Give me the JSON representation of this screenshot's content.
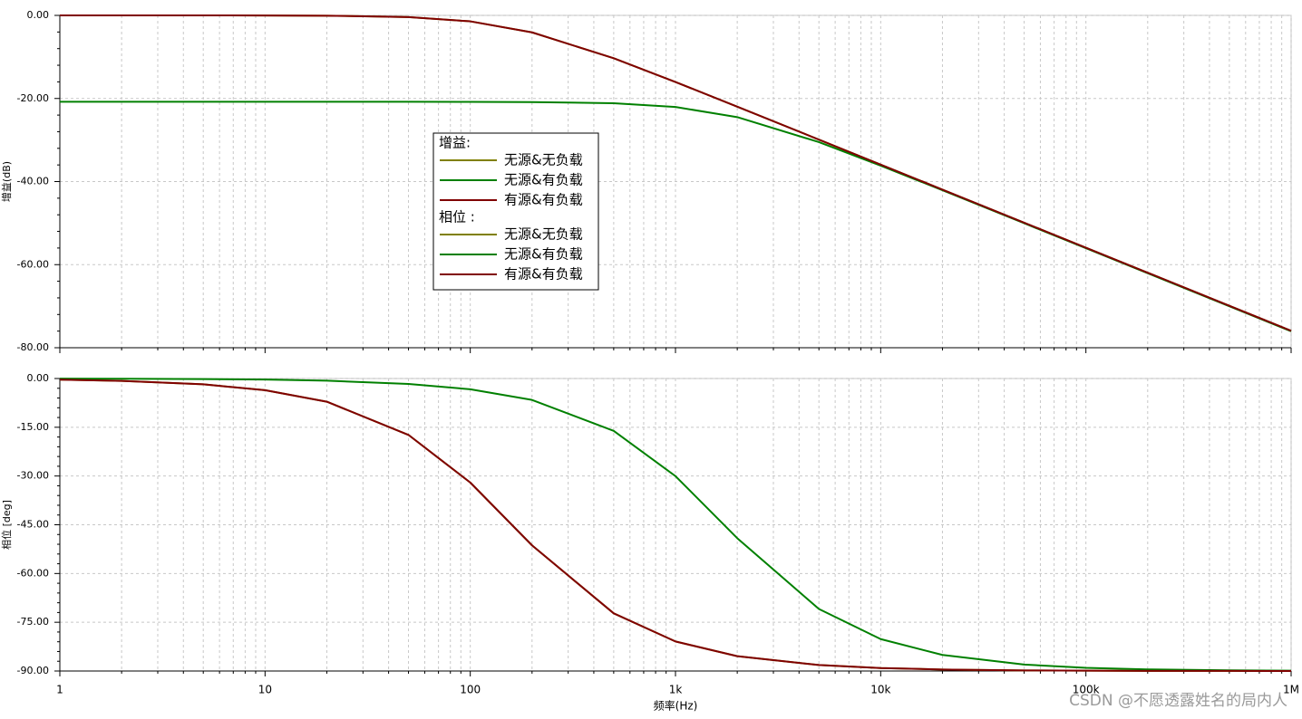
{
  "chart_data": [
    {
      "type": "line",
      "ylabel": "增益(dB)",
      "xscale": "log",
      "xtick_labels": false,
      "grid": true,
      "legend_title": "增益:",
      "xlim": [
        1,
        1000000
      ],
      "xticks": [
        1,
        10,
        100,
        1000,
        10000,
        100000,
        1000000
      ],
      "ylim": [
        -80,
        0
      ],
      "yticks": [
        {
          "value": 0,
          "label": "0.00"
        },
        {
          "value": -20,
          "label": "-20.00"
        },
        {
          "value": -40,
          "label": "-40.00"
        },
        {
          "value": -60,
          "label": "-60.00"
        },
        {
          "value": -80,
          "label": "-80.00"
        }
      ],
      "x": [
        1,
        2,
        5,
        10,
        20,
        50,
        100,
        200,
        500,
        1000,
        2000,
        5000,
        10000,
        20000,
        50000,
        100000,
        200000,
        500000,
        1000000
      ],
      "series": [
        {
          "name": "无源&无负载",
          "color": "#808000",
          "values": [
            0.0,
            0.0,
            0.0,
            -0.02,
            -0.07,
            -0.4,
            -1.43,
            -4.09,
            -10.32,
            -16.03,
            -21.97,
            -29.9,
            -35.92,
            -41.94,
            -49.9,
            -55.92,
            -61.94,
            -69.9,
            -75.92
          ]
        },
        {
          "name": "无源&有负载",
          "color": "#008000",
          "values": [
            -20.8,
            -20.8,
            -20.8,
            -20.8,
            -20.8,
            -20.8,
            -20.81,
            -20.86,
            -21.15,
            -22.05,
            -24.49,
            -30.51,
            -36.17,
            -42.09,
            -50.03,
            -56.04,
            -62.06,
            -70.02,
            -76.04
          ]
        },
        {
          "name": "有源&有负载",
          "color": "#800000",
          "values": [
            0.0,
            0.0,
            0.0,
            -0.02,
            -0.07,
            -0.4,
            -1.43,
            -4.09,
            -10.32,
            -16.03,
            -21.97,
            -29.9,
            -35.92,
            -41.94,
            -49.9,
            -55.92,
            -61.94,
            -69.9,
            -75.92
          ]
        }
      ]
    },
    {
      "type": "line",
      "ylabel": "相位 [deg]",
      "xlabel": "频率(Hz)",
      "xscale": "log",
      "xtick_labels": true,
      "grid": true,
      "legend_title": "相位 :",
      "xlim": [
        1,
        1000000
      ],
      "xticks": [
        1,
        10,
        100,
        {
          "value": 1000,
          "label": "1k"
        },
        {
          "value": 10000,
          "label": "10k"
        },
        {
          "value": 100000,
          "label": "100k"
        },
        {
          "value": 1000000,
          "label": "1M"
        }
      ],
      "ylim": [
        -90,
        0
      ],
      "yticks": [
        {
          "value": 0,
          "label": "0.00"
        },
        {
          "value": -15,
          "label": "-15.00"
        },
        {
          "value": -30,
          "label": "-30.00"
        },
        {
          "value": -45,
          "label": "-45.00"
        },
        {
          "value": -60,
          "label": "-60.00"
        },
        {
          "value": -75,
          "label": "-75.00"
        },
        {
          "value": -90,
          "label": "-90.00"
        }
      ],
      "x": [
        1,
        2,
        5,
        10,
        20,
        50,
        100,
        200,
        500,
        1000,
        2000,
        5000,
        10000,
        20000,
        50000,
        100000,
        200000,
        500000,
        1000000
      ],
      "series": [
        {
          "name": "无源&无负载",
          "color": "#808000",
          "values": [
            -0.36,
            -0.72,
            -1.79,
            -3.58,
            -7.13,
            -17.35,
            -32.01,
            -51.34,
            -72.26,
            -80.91,
            -85.43,
            -88.17,
            -89.08,
            -89.54,
            -89.82,
            -89.91,
            -89.95,
            -89.98,
            -89.99
          ]
        },
        {
          "name": "无源&有负载",
          "color": "#008000",
          "values": [
            -0.03,
            -0.07,
            -0.17,
            -0.33,
            -0.66,
            -1.66,
            -3.31,
            -6.59,
            -16.12,
            -30.03,
            -49.13,
            -70.91,
            -80.18,
            -85.06,
            -88.02,
            -89.01,
            -89.5,
            -89.8,
            -89.9
          ]
        },
        {
          "name": "有源&有负载",
          "color": "#800000",
          "values": [
            -0.36,
            -0.72,
            -1.79,
            -3.58,
            -7.13,
            -17.35,
            -32.01,
            -51.34,
            -72.26,
            -80.91,
            -85.43,
            -88.17,
            -89.08,
            -89.54,
            -89.82,
            -89.91,
            -89.95,
            -89.98,
            -89.99
          ]
        }
      ]
    }
  ],
  "watermark": "CSDN @不愿透露姓名的局内人"
}
